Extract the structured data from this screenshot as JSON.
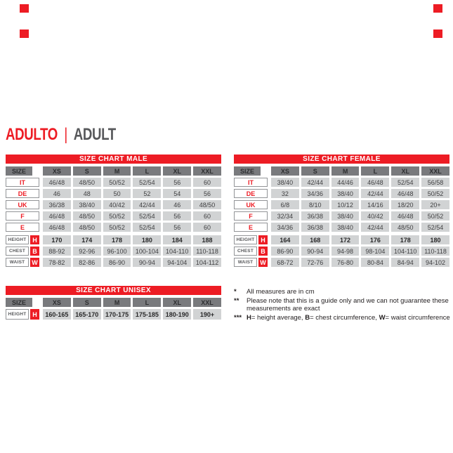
{
  "header": {
    "title_primary": "ADULTO",
    "separator": "|",
    "title_secondary": "ADULT"
  },
  "colors": {
    "brand_red": "#ED1C24",
    "title_gray": "#57585B",
    "header_cell_gray": "#797A7D",
    "data_cell_gray": "#D1D3D4"
  },
  "tables": {
    "male": {
      "title": "SIZE CHART MALE",
      "columns": [
        "SIZE",
        "XS",
        "S",
        "M",
        "L",
        "XL",
        "XXL"
      ],
      "size_rows": [
        {
          "label": "IT",
          "values": [
            "46/48",
            "48/50",
            "50/52",
            "52/54",
            "56",
            "60"
          ]
        },
        {
          "label": "DE",
          "values": [
            "46",
            "48",
            "50",
            "52",
            "54",
            "56"
          ]
        },
        {
          "label": "UK",
          "values": [
            "36/38",
            "38/40",
            "40/42",
            "42/44",
            "46",
            "48/50"
          ]
        },
        {
          "label": "F",
          "values": [
            "46/48",
            "48/50",
            "50/52",
            "52/54",
            "56",
            "60"
          ]
        },
        {
          "label": "E",
          "values": [
            "46/48",
            "48/50",
            "50/52",
            "52/54",
            "56",
            "60"
          ]
        }
      ],
      "measure_rows": [
        {
          "label": "HEIGHT",
          "code": "H",
          "bold": true,
          "values": [
            "170",
            "174",
            "178",
            "180",
            "184",
            "188"
          ]
        },
        {
          "label": "CHEST",
          "code": "B",
          "values": [
            "88-92",
            "92-96",
            "96-100",
            "100-104",
            "104-110",
            "110-118"
          ]
        },
        {
          "label": "WAIST",
          "code": "W",
          "values": [
            "78-82",
            "82-86",
            "86-90",
            "90-94",
            "94-104",
            "104-112"
          ]
        }
      ]
    },
    "female": {
      "title": "SIZE CHART FEMALE",
      "columns": [
        "SIZE",
        "XS",
        "S",
        "M",
        "L",
        "XL",
        "XXL"
      ],
      "size_rows": [
        {
          "label": "IT",
          "values": [
            "38/40",
            "42/44",
            "44/46",
            "46/48",
            "52/54",
            "56/58"
          ]
        },
        {
          "label": "DE",
          "values": [
            "32",
            "34/36",
            "38/40",
            "42/44",
            "46/48",
            "50/52"
          ]
        },
        {
          "label": "UK",
          "values": [
            "6/8",
            "8/10",
            "10/12",
            "14/16",
            "18/20",
            "20+"
          ]
        },
        {
          "label": "F",
          "values": [
            "32/34",
            "36/38",
            "38/40",
            "40/42",
            "46/48",
            "50/52"
          ]
        },
        {
          "label": "E",
          "values": [
            "34/36",
            "36/38",
            "38/40",
            "42/44",
            "48/50",
            "52/54"
          ]
        }
      ],
      "measure_rows": [
        {
          "label": "HEIGHT",
          "code": "H",
          "bold": true,
          "values": [
            "164",
            "168",
            "172",
            "176",
            "178",
            "180"
          ]
        },
        {
          "label": "CHEST",
          "code": "B",
          "values": [
            "86-90",
            "90-94",
            "94-98",
            "98-104",
            "104-110",
            "110-118"
          ]
        },
        {
          "label": "WAIST",
          "code": "W",
          "values": [
            "68-72",
            "72-76",
            "76-80",
            "80-84",
            "84-94",
            "94-102"
          ]
        }
      ]
    },
    "unisex": {
      "title": "SIZE CHART UNISEX",
      "columns": [
        "SIZE",
        "XS",
        "S",
        "M",
        "L",
        "XL",
        "XXL"
      ],
      "measure_rows": [
        {
          "label": "HEIGHT",
          "code": "H",
          "bold": true,
          "values": [
            "160-165",
            "165-170",
            "170-175",
            "175-185",
            "180-190",
            "190+"
          ]
        }
      ]
    }
  },
  "footnotes": [
    {
      "marker": "*",
      "text": "All measures are in cm"
    },
    {
      "marker": "**",
      "text": "Please note that this is a guide only and we can not guarantee these measurements are exact"
    },
    {
      "marker": "***",
      "parts": [
        "H",
        "= height average, ",
        "B",
        "= chest circumference, ",
        "W",
        "= waist circumference"
      ]
    }
  ]
}
